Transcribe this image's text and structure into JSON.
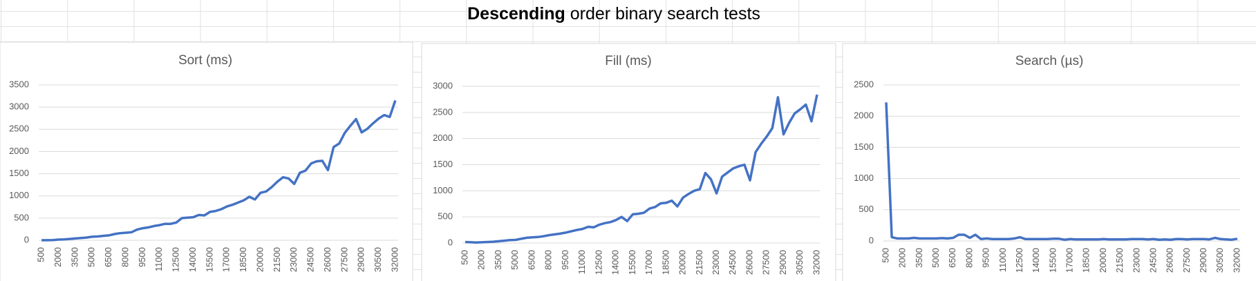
{
  "title_bold": "Descending",
  "title": "order binary search tests",
  "chart_data": [
    {
      "type": "line",
      "title": "Sort (ms)",
      "categories": [
        "500",
        null,
        null,
        "2000",
        null,
        null,
        "3500",
        null,
        null,
        "5000",
        null,
        null,
        "6500",
        null,
        null,
        "8000",
        null,
        null,
        "9500",
        null,
        null,
        "11000",
        null,
        null,
        "12500",
        null,
        null,
        "14000",
        null,
        null,
        "15500",
        null,
        null,
        "17000",
        null,
        null,
        "18500",
        null,
        null,
        "20000",
        null,
        null,
        "21500",
        null,
        null,
        "23000",
        null,
        null,
        "24500",
        null,
        null,
        "26000",
        null,
        null,
        "27500",
        null,
        null,
        "29000",
        null,
        null,
        "30500",
        null,
        null,
        "32000"
      ],
      "series": [
        {
          "color": "#4472c4",
          "values": [
            0,
            2,
            5,
            15,
            20,
            30,
            40,
            50,
            60,
            80,
            85,
            100,
            110,
            140,
            160,
            170,
            180,
            240,
            270,
            290,
            320,
            340,
            370,
            370,
            400,
            500,
            510,
            520,
            570,
            560,
            640,
            660,
            700,
            760,
            800,
            850,
            900,
            980,
            920,
            1070,
            1100,
            1200,
            1320,
            1420,
            1390,
            1270,
            1520,
            1570,
            1730,
            1780,
            1790,
            1580,
            2100,
            2180,
            2420,
            2580,
            2730,
            2430,
            2510,
            2630,
            2740,
            2820,
            2780,
            3150
          ]
        }
      ],
      "ylim": [
        0,
        3500
      ],
      "yticks": [
        0,
        500,
        1000,
        1500,
        2000,
        2500,
        3000,
        3500
      ],
      "grid": true
    },
    {
      "type": "line",
      "title": "Fill (ms)",
      "categories": [
        "500",
        null,
        null,
        "2000",
        null,
        null,
        "3500",
        null,
        null,
        "5000",
        null,
        null,
        "6500",
        null,
        null,
        "8000",
        null,
        null,
        "9500",
        null,
        null,
        "11000",
        null,
        null,
        "12500",
        null,
        null,
        "14000",
        null,
        null,
        "15500",
        null,
        null,
        "17000",
        null,
        null,
        "18500",
        null,
        null,
        "20000",
        null,
        null,
        "21500",
        null,
        null,
        "23000",
        null,
        null,
        "24500",
        null,
        null,
        "26000",
        null,
        null,
        "27500",
        null,
        null,
        "29000",
        null,
        null,
        "30500",
        null,
        null,
        "32000"
      ],
      "series": [
        {
          "color": "#4472c4",
          "values": [
            20,
            15,
            10,
            15,
            20,
            25,
            35,
            45,
            55,
            60,
            80,
            100,
            110,
            115,
            130,
            150,
            165,
            180,
            200,
            225,
            250,
            270,
            310,
            300,
            350,
            380,
            400,
            440,
            500,
            420,
            550,
            560,
            580,
            660,
            690,
            760,
            770,
            810,
            700,
            870,
            940,
            1000,
            1030,
            1340,
            1220,
            950,
            1270,
            1350,
            1430,
            1470,
            1500,
            1200,
            1740,
            1900,
            2040,
            2200,
            2790,
            2080,
            2300,
            2480,
            2560,
            2650,
            2330,
            2840
          ]
        }
      ],
      "ylim": [
        0,
        3000
      ],
      "yticks": [
        0,
        500,
        1000,
        1500,
        2000,
        2500,
        3000
      ],
      "grid": true
    },
    {
      "type": "line",
      "title": "Search (µs)",
      "categories": [
        "500",
        null,
        null,
        "2000",
        null,
        null,
        "3500",
        null,
        null,
        "5000",
        null,
        null,
        "6500",
        null,
        null,
        "8000",
        null,
        null,
        "9500",
        null,
        null,
        "11000",
        null,
        null,
        "12500",
        null,
        null,
        "14000",
        null,
        null,
        "15500",
        null,
        null,
        "17000",
        null,
        null,
        "18500",
        null,
        null,
        "20000",
        null,
        null,
        "21500",
        null,
        null,
        "23000",
        null,
        null,
        "24500",
        null,
        null,
        "26000",
        null,
        null,
        "27500",
        null,
        null,
        "29000",
        null,
        null,
        "30500",
        null,
        null,
        "32000"
      ],
      "series": [
        {
          "color": "#4472c4",
          "values": [
            2220,
            60,
            40,
            40,
            40,
            50,
            40,
            40,
            40,
            40,
            45,
            40,
            50,
            100,
            100,
            50,
            100,
            30,
            40,
            30,
            30,
            30,
            30,
            40,
            60,
            30,
            30,
            30,
            30,
            30,
            35,
            35,
            20,
            30,
            25,
            25,
            25,
            25,
            25,
            30,
            25,
            25,
            25,
            25,
            30,
            30,
            30,
            25,
            30,
            20,
            25,
            20,
            30,
            30,
            25,
            30,
            30,
            30,
            25,
            50,
            30,
            25,
            20,
            35
          ]
        }
      ],
      "ylim": [
        0,
        2500
      ],
      "yticks": [
        0,
        500,
        1000,
        1500,
        2000,
        2500
      ],
      "grid": true
    }
  ]
}
